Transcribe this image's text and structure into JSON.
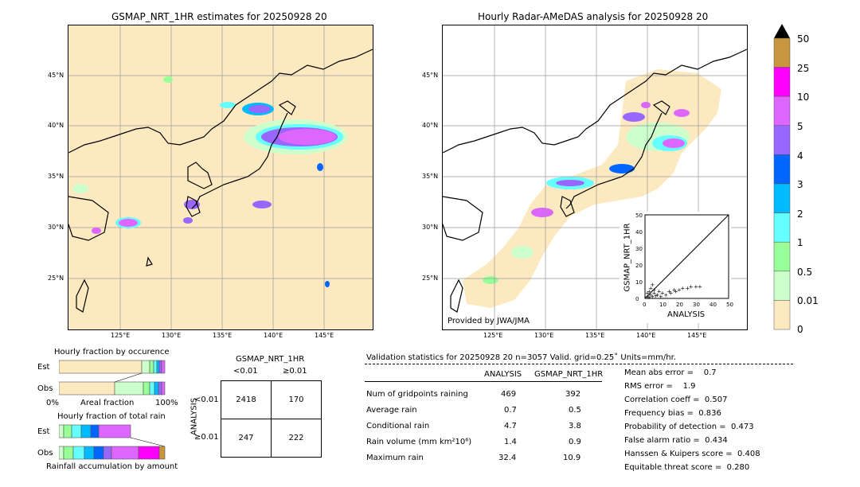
{
  "map_left": {
    "title": "GSMAP_NRT_1HR estimates for 20250928 20",
    "lat_labels": [
      "45°N",
      "40°N",
      "35°N",
      "30°N",
      "25°N"
    ],
    "lon_labels": [
      "125°E",
      "130°E",
      "135°E",
      "140°E",
      "145°E"
    ]
  },
  "map_right": {
    "title": "Hourly Radar-AMeDAS analysis for 20250928 20",
    "lat_labels": [
      "45°N",
      "40°N",
      "35°N",
      "30°N",
      "25°N"
    ],
    "lon_labels": [
      "125°E",
      "130°E",
      "135°E",
      "140°E",
      "145°E"
    ],
    "provider": "Provided by JWA/JMA"
  },
  "colorbar": {
    "labels": [
      "50",
      "25",
      "10",
      "5",
      "4",
      "3",
      "2",
      "1",
      "0.5",
      "0.01",
      "0"
    ],
    "colors": [
      "#c8963c",
      "#ff00ff",
      "#dd66ff",
      "#9966ff",
      "#0066ff",
      "#00bbff",
      "#66ffff",
      "#99ff99",
      "#ccffcc",
      "#fde9c0"
    ]
  },
  "scatter": {
    "xlabel": "ANALYSIS",
    "ylabel": "GSMAP_NRT_1HR",
    "ticks": [
      "0",
      "10",
      "20",
      "30",
      "40",
      "50"
    ]
  },
  "fraction": {
    "occ_title": "Hourly fraction by occurence",
    "total_title": "Hourly fraction of total rain",
    "est": "Est",
    "obs": "Obs",
    "axis_left": "0%",
    "axis_mid": "Areal fraction",
    "axis_right": "100%",
    "footer": "Rainfall accumulation by amount"
  },
  "contingency": {
    "title": "GSMAP_NRT_1HR",
    "col1": "<0.01",
    "col2": "≥0.01",
    "side": "ANALYSIS",
    "row1": "<0.01",
    "row2": "≥0.01",
    "cells": [
      "2418",
      "170",
      "247",
      "222"
    ]
  },
  "validation": {
    "header": "Validation statistics for 20250928 20  n=3057 Valid. grid=0.25˚ Units=mm/hr.",
    "col_a": "ANALYSIS",
    "col_b": "GSMAP_NRT_1HR",
    "rows": [
      {
        "label": "Num of gridpoints raining",
        "a": "469",
        "b": "392"
      },
      {
        "label": "Average rain",
        "a": "0.7",
        "b": "0.5"
      },
      {
        "label": "Conditional rain",
        "a": "4.7",
        "b": "3.8"
      },
      {
        "label": "Rain volume (mm km²10⁶)",
        "a": "1.4",
        "b": "0.9"
      },
      {
        "label": "Maximum rain",
        "a": "32.4",
        "b": "10.9"
      }
    ],
    "scores": [
      "Mean abs error =    0.7",
      "RMS error =    1.9",
      "Correlation coeff =  0.507",
      "Frequency bias =  0.836",
      "Probability of detection =  0.473",
      "False alarm ratio =  0.434",
      "Hanssen & Kuipers score =  0.408",
      "Equitable threat score =  0.280"
    ]
  },
  "chart_data": [
    {
      "type": "heatmap",
      "title": "GSMAP_NRT_1HR estimates for 20250928 20",
      "xlabel": "",
      "ylabel": "",
      "x_ticks": [
        "125°E",
        "130°E",
        "135°E",
        "140°E",
        "145°E"
      ],
      "y_ticks": [
        "45°N",
        "40°N",
        "35°N",
        "30°N",
        "25°N"
      ]
    },
    {
      "type": "heatmap",
      "title": "Hourly Radar-AMeDAS analysis for 20250928 20",
      "xlabel": "",
      "ylabel": "",
      "x_ticks": [
        "125°E",
        "130°E",
        "135°E",
        "140°E",
        "145°E"
      ],
      "y_ticks": [
        "45°N",
        "40°N",
        "35°N",
        "30°N",
        "25°N"
      ]
    },
    {
      "type": "scatter",
      "xlabel": "ANALYSIS",
      "ylabel": "GSMAP_NRT_1HR",
      "xlim": [
        0,
        50
      ],
      "ylim": [
        0,
        50
      ],
      "points": [
        [
          1,
          1
        ],
        [
          2,
          0.5
        ],
        [
          3,
          2
        ],
        [
          4,
          1
        ],
        [
          5,
          3
        ],
        [
          6,
          1.5
        ],
        [
          7,
          2
        ],
        [
          8,
          4
        ],
        [
          9,
          1
        ],
        [
          10,
          3
        ],
        [
          12,
          2
        ],
        [
          14,
          4
        ],
        [
          15,
          3
        ],
        [
          17,
          5
        ],
        [
          18,
          4
        ],
        [
          20,
          5
        ],
        [
          22,
          6
        ],
        [
          25,
          6
        ],
        [
          27,
          7
        ],
        [
          30,
          7
        ],
        [
          32.4,
          7
        ],
        [
          2,
          4
        ],
        [
          3,
          6
        ],
        [
          4,
          8
        ],
        [
          1,
          3
        ],
        [
          5,
          5
        ]
      ]
    },
    {
      "type": "table",
      "title": "GSMAP_NRT_1HR",
      "columns": [
        "<0.01",
        "≥0.01"
      ],
      "rows": [
        "<0.01",
        "≥0.01"
      ],
      "values": [
        [
          2418,
          170
        ],
        [
          247,
          222
        ]
      ]
    }
  ]
}
